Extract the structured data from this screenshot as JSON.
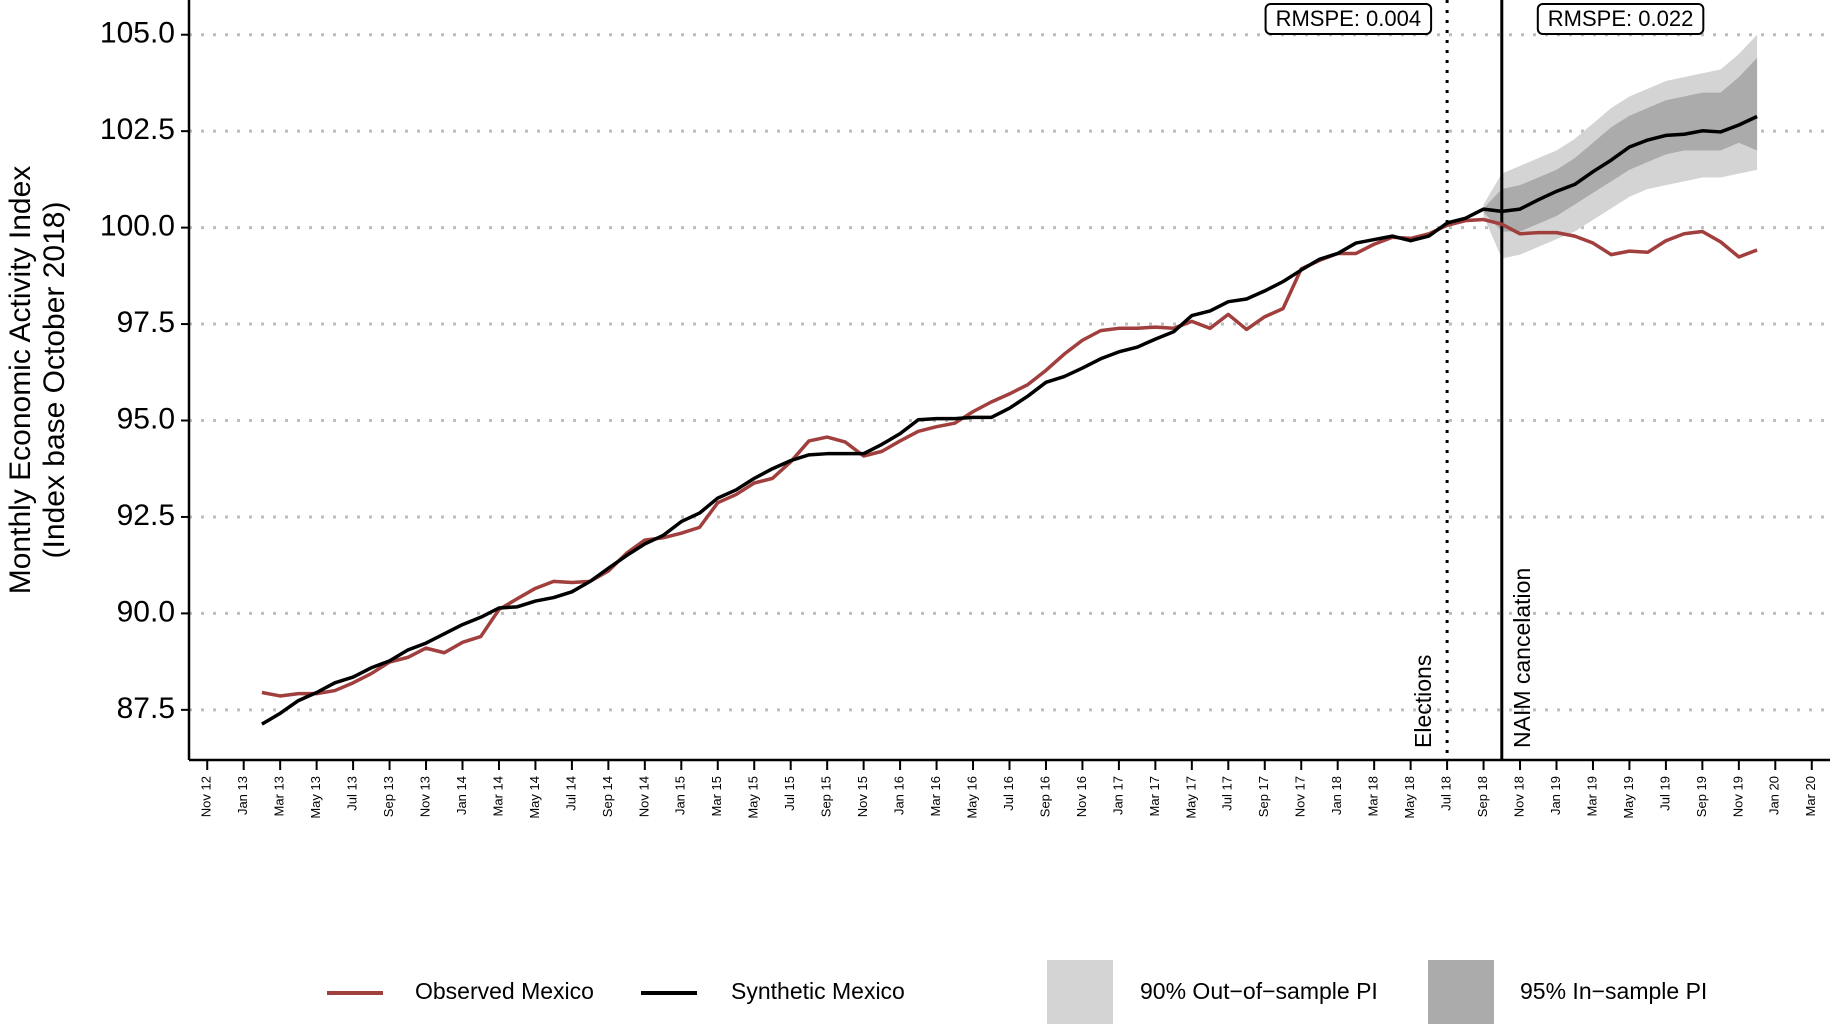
{
  "chart_data": {
    "type": "line",
    "ylabel": [
      "Monthly Economic Activity Index",
      "(Index base October 2018)"
    ],
    "xlim": [
      "2012-10",
      "2020-04"
    ],
    "ylim": [
      86.2,
      105.9
    ],
    "yticks": [
      87.5,
      {
        "value": 90,
        "label": "90.0"
      },
      92.5,
      {
        "value": 95,
        "label": "95.0"
      },
      97.5,
      {
        "value": 100,
        "label": "100.0"
      },
      102.5,
      {
        "value": 105,
        "label": "105.0"
      }
    ],
    "grid": true,
    "xticks": [
      {
        "value": "2012-11",
        "label": "Nov 12"
      },
      {
        "value": "2013-01",
        "label": "Jan 13"
      },
      {
        "value": "2013-03",
        "label": "Mar 13"
      },
      {
        "value": "2013-05",
        "label": "May 13"
      },
      {
        "value": "2013-07",
        "label": "Jul 13"
      },
      {
        "value": "2013-09",
        "label": "Sep 13"
      },
      {
        "value": "2013-11",
        "label": "Nov 13"
      },
      {
        "value": "2014-01",
        "label": "Jan 14"
      },
      {
        "value": "2014-03",
        "label": "Mar 14"
      },
      {
        "value": "2014-05",
        "label": "May 14"
      },
      {
        "value": "2014-07",
        "label": "Jul 14"
      },
      {
        "value": "2014-09",
        "label": "Sep 14"
      },
      {
        "value": "2014-11",
        "label": "Nov 14"
      },
      {
        "value": "2015-01",
        "label": "Jan 15"
      },
      {
        "value": "2015-03",
        "label": "Mar 15"
      },
      {
        "value": "2015-05",
        "label": "May 15"
      },
      {
        "value": "2015-07",
        "label": "Jul 15"
      },
      {
        "value": "2015-09",
        "label": "Sep 15"
      },
      {
        "value": "2015-11",
        "label": "Nov 15"
      },
      {
        "value": "2016-01",
        "label": "Jan 16"
      },
      {
        "value": "2016-03",
        "label": "Mar 16"
      },
      {
        "value": "2016-05",
        "label": "May 16"
      },
      {
        "value": "2016-07",
        "label": "Jul 16"
      },
      {
        "value": "2016-09",
        "label": "Sep 16"
      },
      {
        "value": "2016-11",
        "label": "Nov 16"
      },
      {
        "value": "2017-01",
        "label": "Jan 17"
      },
      {
        "value": "2017-03",
        "label": "Mar 17"
      },
      {
        "value": "2017-05",
        "label": "May 17"
      },
      {
        "value": "2017-07",
        "label": "Jul 17"
      },
      {
        "value": "2017-09",
        "label": "Sep 17"
      },
      {
        "value": "2017-11",
        "label": "Nov 17"
      },
      {
        "value": "2018-01",
        "label": "Jan 18"
      },
      {
        "value": "2018-03",
        "label": "Mar 18"
      },
      {
        "value": "2018-05",
        "label": "May 18"
      },
      {
        "value": "2018-07",
        "label": "Jul 18"
      },
      {
        "value": "2018-09",
        "label": "Sep 18"
      },
      {
        "value": "2018-11",
        "label": "Nov 18"
      },
      {
        "value": "2019-01",
        "label": "Jan 19"
      },
      {
        "value": "2019-03",
        "label": "Mar 19"
      },
      {
        "value": "2019-05",
        "label": "May 19"
      },
      {
        "value": "2019-07",
        "label": "Jul 19"
      },
      {
        "value": "2019-09",
        "label": "Sep 19"
      },
      {
        "value": "2019-11",
        "label": "Nov 19"
      },
      {
        "value": "2020-01",
        "label": "Jan 20"
      },
      {
        "value": "2020-03",
        "label": "Mar 20"
      }
    ],
    "x": [
      "2013-02",
      "2013-03",
      "2013-04",
      "2013-05",
      "2013-06",
      "2013-07",
      "2013-08",
      "2013-09",
      "2013-10",
      "2013-11",
      "2013-12",
      "2014-01",
      "2014-02",
      "2014-03",
      "2014-04",
      "2014-05",
      "2014-06",
      "2014-07",
      "2014-08",
      "2014-09",
      "2014-10",
      "2014-11",
      "2014-12",
      "2015-01",
      "2015-02",
      "2015-03",
      "2015-04",
      "2015-05",
      "2015-06",
      "2015-07",
      "2015-08",
      "2015-09",
      "2015-10",
      "2015-11",
      "2015-12",
      "2016-01",
      "2016-02",
      "2016-03",
      "2016-04",
      "2016-05",
      "2016-06",
      "2016-07",
      "2016-08",
      "2016-09",
      "2016-10",
      "2016-11",
      "2016-12",
      "2017-01",
      "2017-02",
      "2017-03",
      "2017-04",
      "2017-05",
      "2017-06",
      "2017-07",
      "2017-08",
      "2017-09",
      "2017-10",
      "2017-11",
      "2017-12",
      "2018-01",
      "2018-02",
      "2018-03",
      "2018-04",
      "2018-05",
      "2018-06",
      "2018-07",
      "2018-08",
      "2018-09",
      "2018-10",
      "2018-11",
      "2018-12",
      "2019-01",
      "2019-02",
      "2019-03",
      "2019-04",
      "2019-05",
      "2019-06",
      "2019-07",
      "2019-08",
      "2019-09",
      "2019-10",
      "2019-11",
      "2019-12"
    ],
    "bands": [
      {
        "name": "90% Out−of−sample PI",
        "color": "#d4d4d4",
        "x": [
          "2018-09",
          "2018-10",
          "2018-11",
          "2018-12",
          "2019-01",
          "2019-02",
          "2019-03",
          "2019-04",
          "2019-05",
          "2019-06",
          "2019-07",
          "2019-08",
          "2019-09",
          "2019-10",
          "2019-11",
          "2019-12"
        ],
        "upper": [
          100.6,
          101.4,
          101.6,
          101.8,
          102.0,
          102.3,
          102.7,
          103.1,
          103.4,
          103.6,
          103.8,
          103.9,
          104.0,
          104.1,
          104.5,
          105.0
        ],
        "lower": [
          100.3,
          99.2,
          99.3,
          99.5,
          99.7,
          99.9,
          100.2,
          100.5,
          100.8,
          101.0,
          101.1,
          101.2,
          101.3,
          101.3,
          101.4,
          101.5
        ]
      },
      {
        "name": "95% In−sample PI",
        "color": "#ababab",
        "x": [
          "2018-09",
          "2018-10",
          "2018-11",
          "2018-12",
          "2019-01",
          "2019-02",
          "2019-03",
          "2019-04",
          "2019-05",
          "2019-06",
          "2019-07",
          "2019-08",
          "2019-09",
          "2019-10",
          "2019-11",
          "2019-12"
        ],
        "upper": [
          100.5,
          101.0,
          101.1,
          101.3,
          101.5,
          101.8,
          102.2,
          102.6,
          102.9,
          103.1,
          103.3,
          103.4,
          103.5,
          103.5,
          103.9,
          104.4
        ],
        "lower": [
          100.4,
          99.9,
          99.9,
          100.1,
          100.3,
          100.6,
          100.9,
          101.2,
          101.5,
          101.7,
          101.9,
          102.0,
          102.0,
          102.0,
          102.2,
          102.0
        ]
      }
    ],
    "series": [
      {
        "name": "Observed Mexico",
        "color": "#a03f3d",
        "values": [
          87.95,
          87.86,
          87.92,
          87.92,
          88.0,
          88.2,
          88.44,
          88.74,
          88.86,
          89.1,
          88.98,
          89.25,
          89.4,
          90.1,
          90.38,
          90.65,
          90.83,
          90.8,
          90.83,
          91.1,
          91.56,
          91.9,
          91.96,
          92.08,
          92.23,
          92.87,
          93.08,
          93.38,
          93.5,
          93.93,
          94.47,
          94.57,
          94.44,
          94.08,
          94.2,
          94.47,
          94.72,
          94.84,
          94.93,
          95.23,
          95.48,
          95.69,
          95.93,
          96.3,
          96.72,
          97.08,
          97.33,
          97.39,
          97.39,
          97.42,
          97.39,
          97.57,
          97.39,
          97.75,
          97.36,
          97.69,
          97.9,
          98.93,
          99.15,
          99.33,
          99.33,
          99.57,
          99.75,
          99.72,
          99.84,
          100.06,
          100.18,
          100.21,
          100.09,
          99.84,
          99.87,
          99.87,
          99.78,
          99.6,
          99.3,
          99.39,
          99.36,
          99.66,
          99.84,
          99.9,
          99.63,
          99.24,
          99.42
        ]
      },
      {
        "name": "Synthetic Mexico",
        "color": "#000000",
        "values": [
          87.13,
          87.41,
          87.74,
          87.95,
          88.2,
          88.35,
          88.59,
          88.77,
          89.05,
          89.23,
          89.47,
          89.71,
          89.9,
          90.14,
          90.17,
          90.32,
          90.41,
          90.56,
          90.83,
          91.17,
          91.5,
          91.8,
          92.02,
          92.38,
          92.6,
          92.99,
          93.2,
          93.5,
          93.75,
          93.96,
          94.11,
          94.14,
          94.14,
          94.14,
          94.38,
          94.66,
          95.02,
          95.05,
          95.05,
          95.08,
          95.08,
          95.32,
          95.63,
          95.99,
          96.14,
          96.36,
          96.6,
          96.78,
          96.9,
          97.11,
          97.3,
          97.72,
          97.84,
          98.08,
          98.15,
          98.36,
          98.6,
          98.9,
          99.18,
          99.33,
          99.6,
          99.69,
          99.78,
          99.66,
          99.78,
          100.12,
          100.24,
          100.48,
          100.42,
          100.48,
          100.72,
          100.94,
          101.12,
          101.45,
          101.75,
          102.09,
          102.27,
          102.39,
          102.42,
          102.51,
          102.48,
          102.66,
          102.88
        ]
      }
    ],
    "vlines": [
      {
        "label": "Elections",
        "x": "2018-07",
        "dashed": true,
        "box": "RMSPE: 0.004"
      },
      {
        "label": "NAIM cancelation",
        "x": "2018-10",
        "dashed": false,
        "box": "RMSPE: 0.022"
      }
    ]
  }
}
